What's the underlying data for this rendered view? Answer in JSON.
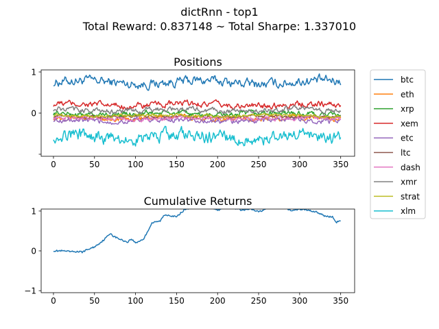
{
  "figure": {
    "title_line1": "dictRnn - top1",
    "title_line2": "Total Reward: 0.837148 ~ Total Sharpe: 1.337010"
  },
  "chart_data": [
    {
      "type": "line",
      "title": "Positions",
      "xlabel": "",
      "ylabel": "",
      "xlim": [
        -15,
        367
      ],
      "ylim": [
        -1.05,
        1.05
      ],
      "xticks": [
        0,
        50,
        100,
        150,
        200,
        250,
        300,
        350
      ],
      "yticks": [
        -1,
        0,
        1
      ],
      "ytick_labels": [
        "",
        "0",
        "1"
      ],
      "grid": false,
      "legend": "outside-right",
      "x_range": [
        0,
        350
      ],
      "series": [
        {
          "name": "btc",
          "color": "#1f77b4",
          "mean": 0.75,
          "amp": 0.09,
          "phase": 0.0
        },
        {
          "name": "eth",
          "color": "#ff7f0e",
          "mean": -0.12,
          "amp": 0.05,
          "phase": 1.1
        },
        {
          "name": "xrp",
          "color": "#2ca02c",
          "mean": -0.02,
          "amp": 0.05,
          "phase": 2.3
        },
        {
          "name": "xem",
          "color": "#d62728",
          "mean": 0.2,
          "amp": 0.06,
          "phase": 0.7
        },
        {
          "name": "etc",
          "color": "#9467bd",
          "mean": -0.18,
          "amp": 0.05,
          "phase": 1.9
        },
        {
          "name": "ltc",
          "color": "#8c564b",
          "mean": -0.08,
          "amp": 0.03,
          "phase": 2.8
        },
        {
          "name": "dash",
          "color": "#e377c2",
          "mean": -0.13,
          "amp": 0.04,
          "phase": 0.4
        },
        {
          "name": "xmr",
          "color": "#7f7f7f",
          "mean": 0.07,
          "amp": 0.05,
          "phase": 1.5
        },
        {
          "name": "strat",
          "color": "#bcbd22",
          "mean": -0.06,
          "amp": 0.03,
          "phase": 2.1
        },
        {
          "name": "xlm",
          "color": "#17becf",
          "mean": -0.58,
          "amp": 0.12,
          "phase": 0.9
        }
      ]
    },
    {
      "type": "line",
      "title": "Cumulative Returns",
      "xlabel": "",
      "ylabel": "",
      "xlim": [
        -15,
        367
      ],
      "ylim": [
        -1.05,
        1.05
      ],
      "xticks": [
        0,
        50,
        100,
        150,
        200,
        250,
        300,
        350
      ],
      "yticks": [
        -1,
        0,
        1
      ],
      "grid": false,
      "series": [
        {
          "name": "",
          "color": "#1f77b4",
          "x": [
            0,
            10,
            20,
            30,
            35,
            40,
            50,
            60,
            65,
            70,
            72,
            80,
            90,
            95,
            100,
            110,
            115,
            120,
            130,
            135,
            140,
            150,
            155,
            160,
            170,
            190,
            200,
            210,
            220,
            230,
            240,
            250,
            260,
            270,
            280,
            290,
            300,
            310,
            320,
            330,
            340,
            345,
            350
          ],
          "y": [
            0.0,
            0.0,
            -0.02,
            -0.02,
            -0.03,
            0.02,
            0.1,
            0.25,
            0.35,
            0.45,
            0.38,
            0.3,
            0.22,
            0.3,
            0.2,
            0.3,
            0.5,
            0.7,
            0.75,
            0.9,
            0.9,
            0.85,
            0.95,
            1.04,
            1.1,
            1.12,
            1.02,
            1.1,
            1.08,
            1.02,
            1.05,
            0.98,
            1.06,
            1.1,
            1.12,
            1.0,
            1.05,
            1.02,
            0.98,
            0.88,
            0.85,
            0.72,
            0.75
          ]
        }
      ]
    }
  ]
}
